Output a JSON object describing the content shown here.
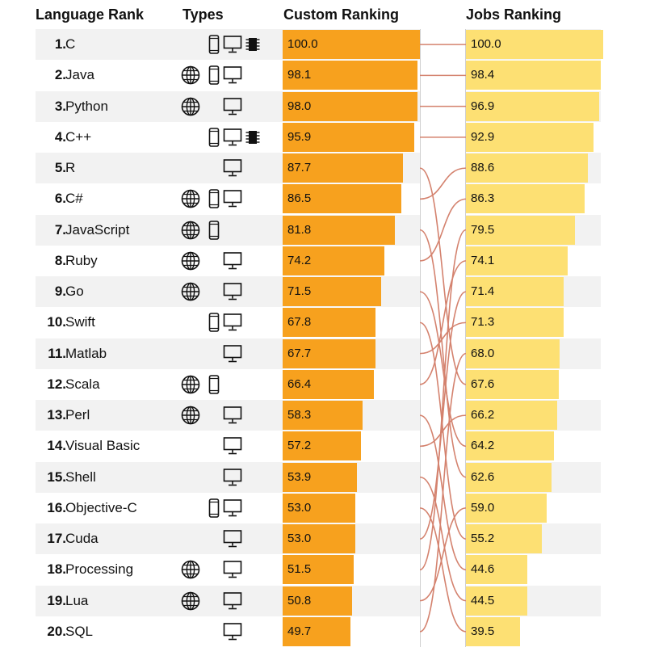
{
  "headers": {
    "language_rank": "Language Rank",
    "types": "Types",
    "custom_ranking": "Custom Ranking",
    "jobs_ranking": "Jobs Ranking"
  },
  "colors": {
    "custom_bar": "#f7a11e",
    "jobs_bar": "#fde073",
    "link": "#d4826e",
    "stripe": "#f2f2f2"
  },
  "chart_data": {
    "type": "bar",
    "title": "",
    "categories": [
      "C",
      "Java",
      "Python",
      "C++",
      "R",
      "C#",
      "JavaScript",
      "Ruby",
      "Go",
      "Swift",
      "Matlab",
      "Scala",
      "Perl",
      "Visual Basic",
      "Shell",
      "Objective-C",
      "Cuda",
      "Processing",
      "Lua",
      "SQL"
    ],
    "ranks": [
      "1.",
      "2.",
      "3.",
      "4.",
      "5.",
      "6.",
      "7.",
      "8.",
      "9.",
      "10.",
      "11.",
      "12.",
      "13.",
      "14.",
      "15.",
      "16.",
      "17.",
      "18.",
      "19.",
      "20."
    ],
    "types": [
      [
        "mobile",
        "desktop",
        "embedded"
      ],
      [
        "web",
        "mobile",
        "desktop"
      ],
      [
        "web",
        "desktop"
      ],
      [
        "mobile",
        "desktop",
        "embedded"
      ],
      [
        "desktop"
      ],
      [
        "web",
        "mobile",
        "desktop"
      ],
      [
        "web",
        "mobile"
      ],
      [
        "web",
        "desktop"
      ],
      [
        "web",
        "desktop"
      ],
      [
        "mobile",
        "desktop"
      ],
      [
        "desktop"
      ],
      [
        "web",
        "mobile"
      ],
      [
        "web",
        "desktop"
      ],
      [
        "desktop"
      ],
      [
        "desktop"
      ],
      [
        "mobile",
        "desktop"
      ],
      [
        "desktop"
      ],
      [
        "web",
        "desktop"
      ],
      [
        "web",
        "desktop"
      ],
      [
        "desktop"
      ]
    ],
    "series": [
      {
        "name": "Custom Ranking",
        "values": [
          "100.0",
          "98.1",
          "98.0",
          "95.9",
          "87.7",
          "86.5",
          "81.8",
          "74.2",
          "71.5",
          "67.8",
          "67.7",
          "66.4",
          "58.3",
          "57.2",
          "53.9",
          "53.0",
          "53.0",
          "51.5",
          "50.8",
          "49.7"
        ]
      },
      {
        "name": "Jobs Ranking",
        "values": [
          "100.0",
          "98.4",
          "96.9",
          "92.9",
          "88.6",
          "86.3",
          "79.5",
          "74.1",
          "71.4",
          "71.3",
          "68.0",
          "67.6",
          "66.2",
          "64.2",
          "62.6",
          "59.0",
          "55.2",
          "44.6",
          "44.5",
          "39.5"
        ]
      }
    ],
    "jobs_target_rows": [
      1,
      2,
      3,
      4,
      12,
      5,
      15,
      6,
      14,
      17,
      10,
      8,
      18,
      13,
      19,
      20,
      9,
      7,
      16,
      11
    ],
    "ylim": [
      0,
      100
    ]
  }
}
